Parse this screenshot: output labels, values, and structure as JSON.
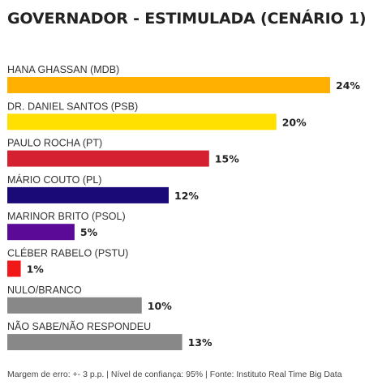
{
  "chart_data": {
    "type": "bar",
    "orientation": "horizontal",
    "title": "GOVERNADOR - ESTIMULADA (CENÁRIO 1)",
    "categories": [
      "HANA GHASSAN (MDB)",
      "DR. DANIEL SANTOS (PSB)",
      "PAULO ROCHA (PT)",
      "MÁRIO COUTO (PL)",
      "MARINOR BRITO (PSOL)",
      "CLÉBER RABELO (PSTU)",
      "NULO/BRANCO",
      "NÃO SABE/NÃO RESPONDEU"
    ],
    "values": [
      24,
      20,
      15,
      12,
      5,
      1,
      10,
      13
    ],
    "value_labels": [
      "24%",
      "20%",
      "15%",
      "12%",
      "5%",
      "1%",
      "10%",
      "13%"
    ],
    "colors": [
      "#FFB000",
      "#FFE000",
      "#D42030",
      "#1A0A78",
      "#5A0A96",
      "#F01818",
      "#888888",
      "#888888"
    ],
    "xlim": [
      0,
      24
    ],
    "grid": false,
    "legend": "none"
  },
  "footer": "Margem de erro: +- 3 p.p. | Nível de confiança: 95% | Fonte: Instituto Real Time Big Data"
}
